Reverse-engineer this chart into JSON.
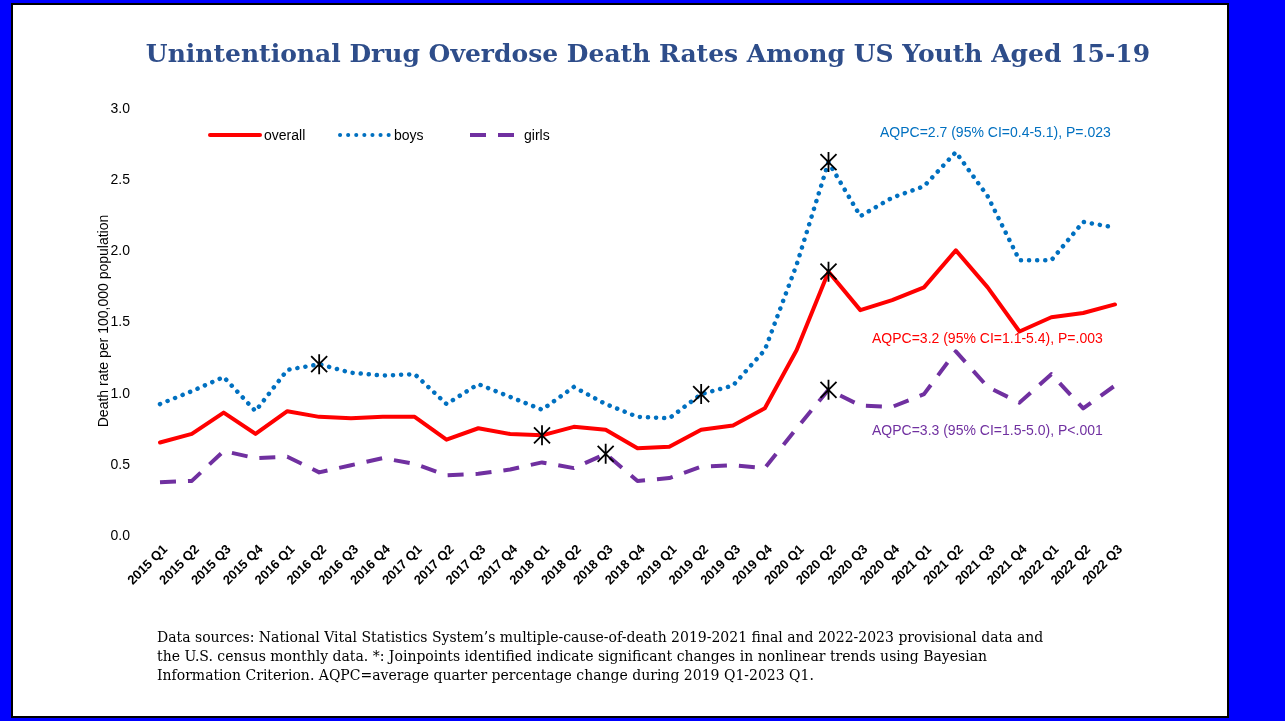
{
  "chart_data": {
    "type": "line",
    "title": "Unintentional Drug Overdose Death Rates Among US Youth Aged 15-19",
    "ylabel": "Death rate per 100,000 population",
    "categories": [
      "2015 Q1",
      "2015 Q2",
      "2015 Q3",
      "2015 Q4",
      "2016 Q1",
      "2016 Q2",
      "2016 Q3",
      "2016 Q4",
      "2017 Q1",
      "2017 Q2",
      "2017 Q3",
      "2017 Q4",
      "2018 Q1",
      "2018 Q2",
      "2018 Q3",
      "2018 Q4",
      "2019 Q1",
      "2019 Q2",
      "2019 Q3",
      "2019 Q4",
      "2020 Q1",
      "2020 Q2",
      "2020 Q3",
      "2020 Q4",
      "2021 Q1",
      "2021 Q2",
      "2021 Q3",
      "2021 Q4",
      "2022 Q1",
      "2022 Q2",
      "2022 Q3"
    ],
    "series": [
      {
        "name": "overall",
        "color": "#ff0000",
        "line_style": "solid",
        "values": [
          0.65,
          0.71,
          0.86,
          0.71,
          0.87,
          0.83,
          0.82,
          0.83,
          0.83,
          0.67,
          0.75,
          0.71,
          0.7,
          0.76,
          0.74,
          0.61,
          0.62,
          0.74,
          0.77,
          0.89,
          1.3,
          1.85,
          1.58,
          1.65,
          1.74,
          2.0,
          1.74,
          1.43,
          1.53,
          1.56,
          1.62
        ]
      },
      {
        "name": "boys",
        "color": "#0070c0",
        "line_style": "dotted",
        "values": [
          0.92,
          1.01,
          1.11,
          0.87,
          1.16,
          1.2,
          1.14,
          1.12,
          1.13,
          0.92,
          1.06,
          0.97,
          0.88,
          1.04,
          0.92,
          0.83,
          0.82,
          0.99,
          1.05,
          1.3,
          1.9,
          2.62,
          2.24,
          2.37,
          2.45,
          2.69,
          2.38,
          1.93,
          1.93,
          2.2,
          2.16
        ]
      },
      {
        "name": "girls",
        "color": "#7030a0",
        "line_style": "dashed",
        "values": [
          0.37,
          0.38,
          0.59,
          0.54,
          0.55,
          0.44,
          0.49,
          0.54,
          0.5,
          0.42,
          0.43,
          0.46,
          0.51,
          0.47,
          0.57,
          0.38,
          0.4,
          0.48,
          0.49,
          0.47,
          0.75,
          1.02,
          0.91,
          0.9,
          0.99,
          1.29,
          1.04,
          0.93,
          1.13,
          0.89,
          1.05
        ]
      },
      {
        "type": "scatter",
        "color": "#000000",
        "marker": "cross",
        "x": [
          "2016 Q2",
          "2019 Q2",
          "2020 Q2",
          "2018 Q1",
          "2020 Q2",
          "2018 Q3",
          "2020 Q2"
        ],
        "values": [
          1.2,
          0.99,
          2.62,
          0.7,
          1.85,
          0.57,
          1.02
        ]
      }
    ],
    "ylim": [
      0,
      3
    ],
    "yticks": [
      {
        "value": 0,
        "label": "0.0"
      },
      {
        "value": 0.5,
        "label": "0.5"
      },
      {
        "value": 1,
        "label": "1.0"
      },
      {
        "value": 1.5,
        "label": "1.5"
      },
      {
        "value": 2,
        "label": "2.0"
      },
      {
        "value": 2.5,
        "label": "2.5"
      },
      {
        "value": 3,
        "label": "3.0"
      }
    ],
    "legend": "top left",
    "grid": false,
    "annotations": [
      "AQPC=3.2 (95% CI=1.1-5.4), P=.003",
      "AQPC=2.7 (95% CI=0.4-5.1), P=.023",
      "AQPC=3.3 (95% CI=1.5-5.0), P<.001",
      "Data sources:  National Vital Statistics System’s multiple-cause-of-death 2019-2021 final and 2022-2023 provisional data and the U.S. census monthly data.  *: Joinpoints identified indicate significant changes in nonlinear trends using Bayesian Information Criterion. AQPC=average quarter percentage change during 2019 Q1-2023 Q1."
    ]
  }
}
